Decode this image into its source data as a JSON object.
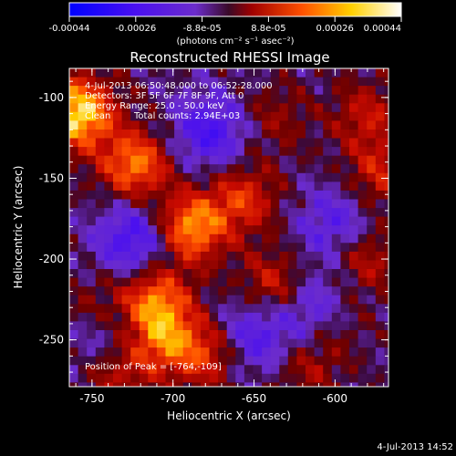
{
  "chart_data": {
    "type": "heatmap",
    "title": "Reconstructed RHESSI Image",
    "xlabel": "Heliocentric X (arcsec)",
    "ylabel": "Heliocentric Y (arcsec)",
    "xlim": [
      -764,
      -567
    ],
    "ylim": [
      -279,
      -82
    ],
    "x_ticks": [
      -750,
      -700,
      -650,
      -600
    ],
    "y_ticks": [
      -100,
      -150,
      -200,
      -250
    ],
    "colorbar": {
      "ticks": [
        "-0.00044",
        "-0.00026",
        "-8.8e-05",
        "8.8e-05",
        "0.00026",
        "0.00044"
      ],
      "units_text": "(photons cm⁻² s⁻¹ asec⁻²)",
      "range": [
        -0.00044,
        0.00044
      ],
      "colormap": [
        "#0000ff",
        "#6c2ccc",
        "#a00000",
        "#ff5000",
        "#ffd000",
        "#ffffff"
      ]
    },
    "annotations": {
      "time_range": "4-Jul-2013 06:50:48.000 to 06:52:28.000",
      "detectors": "Detectors: 3F 5F 6F 7F 8F 9F, Att 0",
      "energy_range": "Energy Range: 25.0 - 50.0 keV",
      "method": "Clean",
      "total_counts": "Total counts: 2.94E+03",
      "peak_position": "Position of Peak = [-764,-109]"
    },
    "hot_spots": [
      {
        "x": -761,
        "y": -107,
        "value": 0.00044
      },
      {
        "x": -726,
        "y": -139,
        "value": 0.00032
      },
      {
        "x": -692,
        "y": -178,
        "value": 0.00036
      },
      {
        "x": -660,
        "y": -160,
        "value": 0.00022
      },
      {
        "x": -714,
        "y": -222,
        "value": 0.0003
      },
      {
        "x": -709,
        "y": -247,
        "value": 0.00026
      },
      {
        "x": -682,
        "y": -256,
        "value": 0.00022
      },
      {
        "x": -640,
        "y": -214,
        "value": 0.0002
      },
      {
        "x": -575,
        "y": -145,
        "value": 0.00018
      },
      {
        "x": -583,
        "y": -109,
        "value": 0.00016
      },
      {
        "x": -585,
        "y": -197,
        "value": 0.00018
      },
      {
        "x": -604,
        "y": -236,
        "value": 0.0002
      },
      {
        "x": -620,
        "y": -262,
        "value": 0.00014
      },
      {
        "x": -737,
        "y": -266,
        "value": 0.00018
      },
      {
        "x": -749,
        "y": -228,
        "value": 0.00012
      },
      {
        "x": -640,
        "y": -110,
        "value": 0.0001
      }
    ],
    "cold_spots": [
      {
        "x": -726,
        "y": -186,
        "value": -0.00024
      },
      {
        "x": -680,
        "y": -119,
        "value": -0.00022
      },
      {
        "x": -612,
        "y": -231,
        "value": -0.00028
      },
      {
        "x": -602,
        "y": -177,
        "value": -0.00018
      },
      {
        "x": -653,
        "y": -245,
        "value": -0.0002
      },
      {
        "x": -744,
        "y": -246,
        "value": -0.00016
      }
    ]
  },
  "footer": {
    "timestamp": "4-Jul-2013 14:52"
  }
}
